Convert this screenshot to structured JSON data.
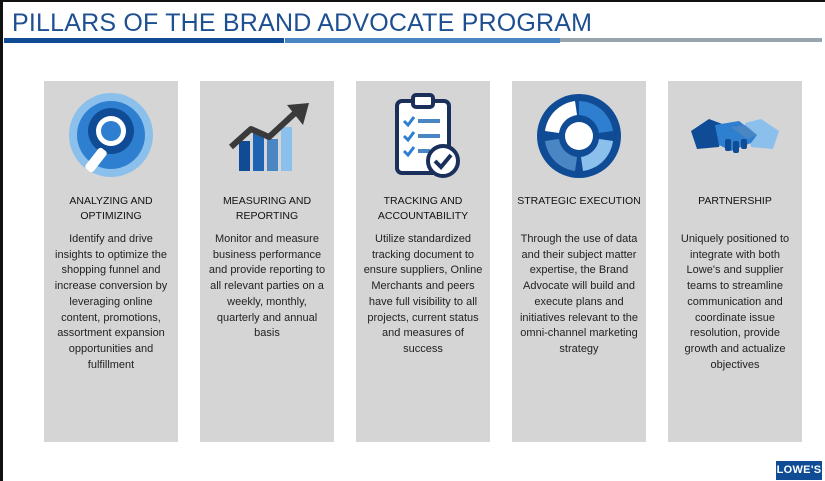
{
  "slide": {
    "title": "PILLARS OF THE BRAND ADVOCATE PROGRAM",
    "logo_text": "LOWE'S"
  },
  "pillars": [
    {
      "icon": "magnifier-icon",
      "heading": "ANALYZING AND OPTIMIZING",
      "description": "Identify and drive insights to optimize the shopping funnel and increase conversion by leveraging online content, promotions, assortment expansion opportunities and fulfillment"
    },
    {
      "icon": "growth-chart-icon",
      "heading": "MEASURING AND REPORTING",
      "description": "Monitor and measure business performance and provide reporting to all relevant parties on a weekly, monthly, quarterly and annual basis"
    },
    {
      "icon": "clipboard-checklist-icon",
      "heading": "TRACKING AND ACCOUNTABILITY",
      "description": "Utilize standardized tracking document to ensure suppliers, Online Merchants and peers have full visibility to all projects, current status and measures of success"
    },
    {
      "icon": "cycle-arrows-icon",
      "heading": "STRATEGIC EXECUTION",
      "description": "Through the use of data and their subject matter expertise, the Brand Advocate will build and execute plans and initiatives relevant to the omni-channel marketing strategy"
    },
    {
      "icon": "handshake-icon",
      "heading": "PARTNERSHIP",
      "description": "Uniquely positioned to integrate with both Lowe's and supplier teams to streamline communication and coordinate issue resolution, provide growth and actualize objectives"
    }
  ],
  "colors": {
    "title_blue": "#1d4f91",
    "dark_blue": "#0f4c95",
    "mid_blue": "#4b86c4",
    "light_blue": "#8cc0ec",
    "card_gray": "#d5d5d6"
  }
}
